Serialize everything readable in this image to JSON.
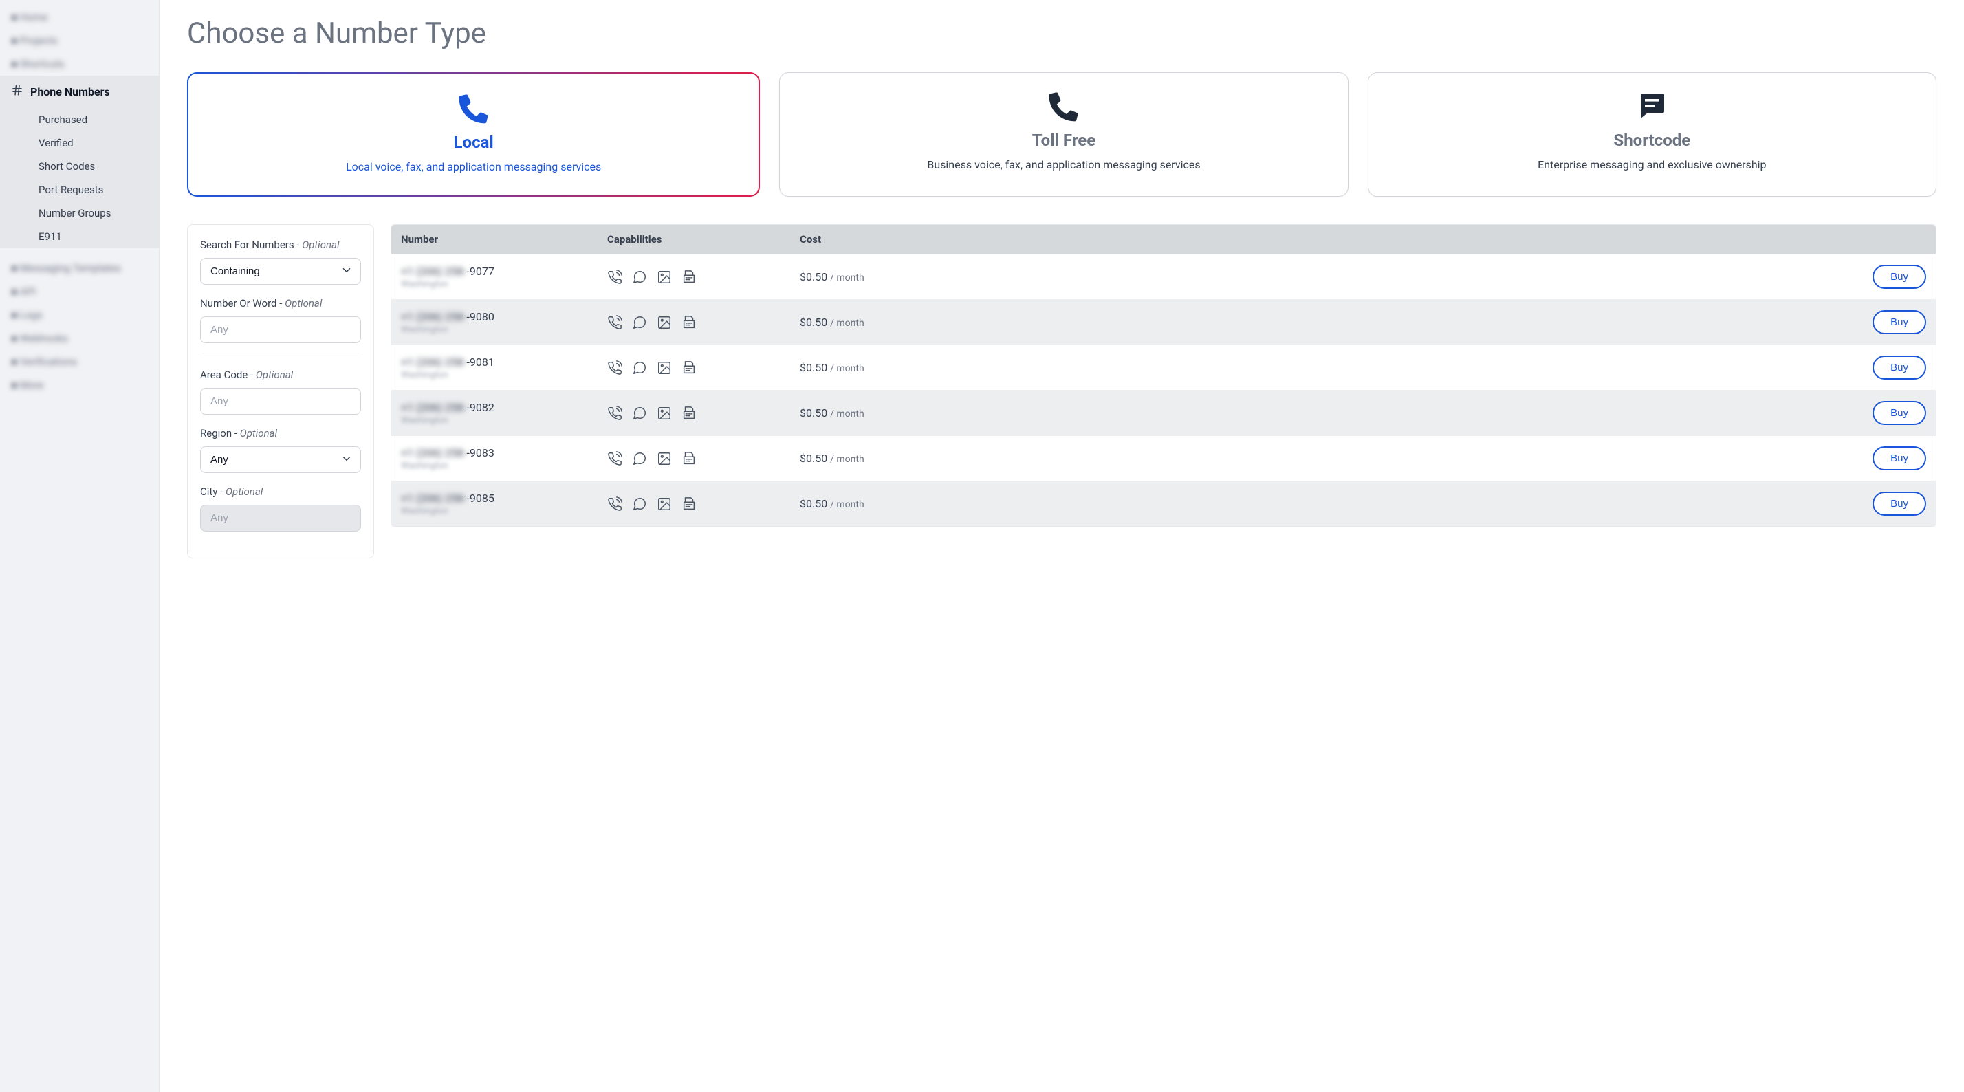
{
  "sidebar": {
    "blurred_top": [
      "Home",
      "Projects",
      "Shortcuts"
    ],
    "active_section": "Phone Numbers",
    "subitems": [
      "Purchased",
      "Verified",
      "Short Codes",
      "Port Requests",
      "Number Groups",
      "E911"
    ],
    "blurred_bottom": [
      "Messaging Templates",
      "API",
      "Logs",
      "Webhooks",
      "Verifications",
      "More"
    ]
  },
  "page_title": "Choose a Number Type",
  "type_cards": [
    {
      "title": "Local",
      "desc": "Local voice, fax, and application messaging services",
      "icon": "phone",
      "selected": true
    },
    {
      "title": "Toll Free",
      "desc": "Business voice, fax, and application messaging services",
      "icon": "phone",
      "selected": false
    },
    {
      "title": "Shortcode",
      "desc": "Enterprise messaging and exclusive ownership",
      "icon": "message",
      "selected": false
    }
  ],
  "filters": {
    "search_label": "Search For Numbers -",
    "search_opt": "Optional",
    "search_value": "Containing",
    "number_label": "Number Or Word -",
    "number_opt": "Optional",
    "number_placeholder": "Any",
    "area_label": "Area Code -",
    "area_opt": "Optional",
    "area_placeholder": "Any",
    "region_label": "Region -",
    "region_opt": "Optional",
    "region_value": "Any",
    "city_label": "City -",
    "city_opt": "Optional",
    "city_placeholder": "Any"
  },
  "table": {
    "headers": {
      "number": "Number",
      "capabilities": "Capabilities",
      "cost": "Cost"
    },
    "buy_label": "Buy",
    "rows": [
      {
        "prefix": "+1 (206) 258-",
        "suffix": "9077",
        "region": "Washington",
        "price": "$0.50",
        "unit": "/ month"
      },
      {
        "prefix": "+1 (206) 258-",
        "suffix": "9080",
        "region": "Washington",
        "price": "$0.50",
        "unit": "/ month"
      },
      {
        "prefix": "+1 (206) 258-",
        "suffix": "9081",
        "region": "Washington",
        "price": "$0.50",
        "unit": "/ month"
      },
      {
        "prefix": "+1 (206) 258-",
        "suffix": "9082",
        "region": "Washington",
        "price": "$0.50",
        "unit": "/ month"
      },
      {
        "prefix": "+1 (206) 258-",
        "suffix": "9083",
        "region": "Washington",
        "price": "$0.50",
        "unit": "/ month"
      },
      {
        "prefix": "+1 (206) 258-",
        "suffix": "9085",
        "region": "Washington",
        "price": "$0.50",
        "unit": "/ month"
      }
    ]
  },
  "colors": {
    "accent_blue": "#1a56db",
    "accent_pink": "#e11d48",
    "sidebar_bg": "#f0f2f5",
    "row_alt": "#eceef0",
    "header_bg": "#d6d9dc",
    "text_muted": "#6b7280"
  }
}
